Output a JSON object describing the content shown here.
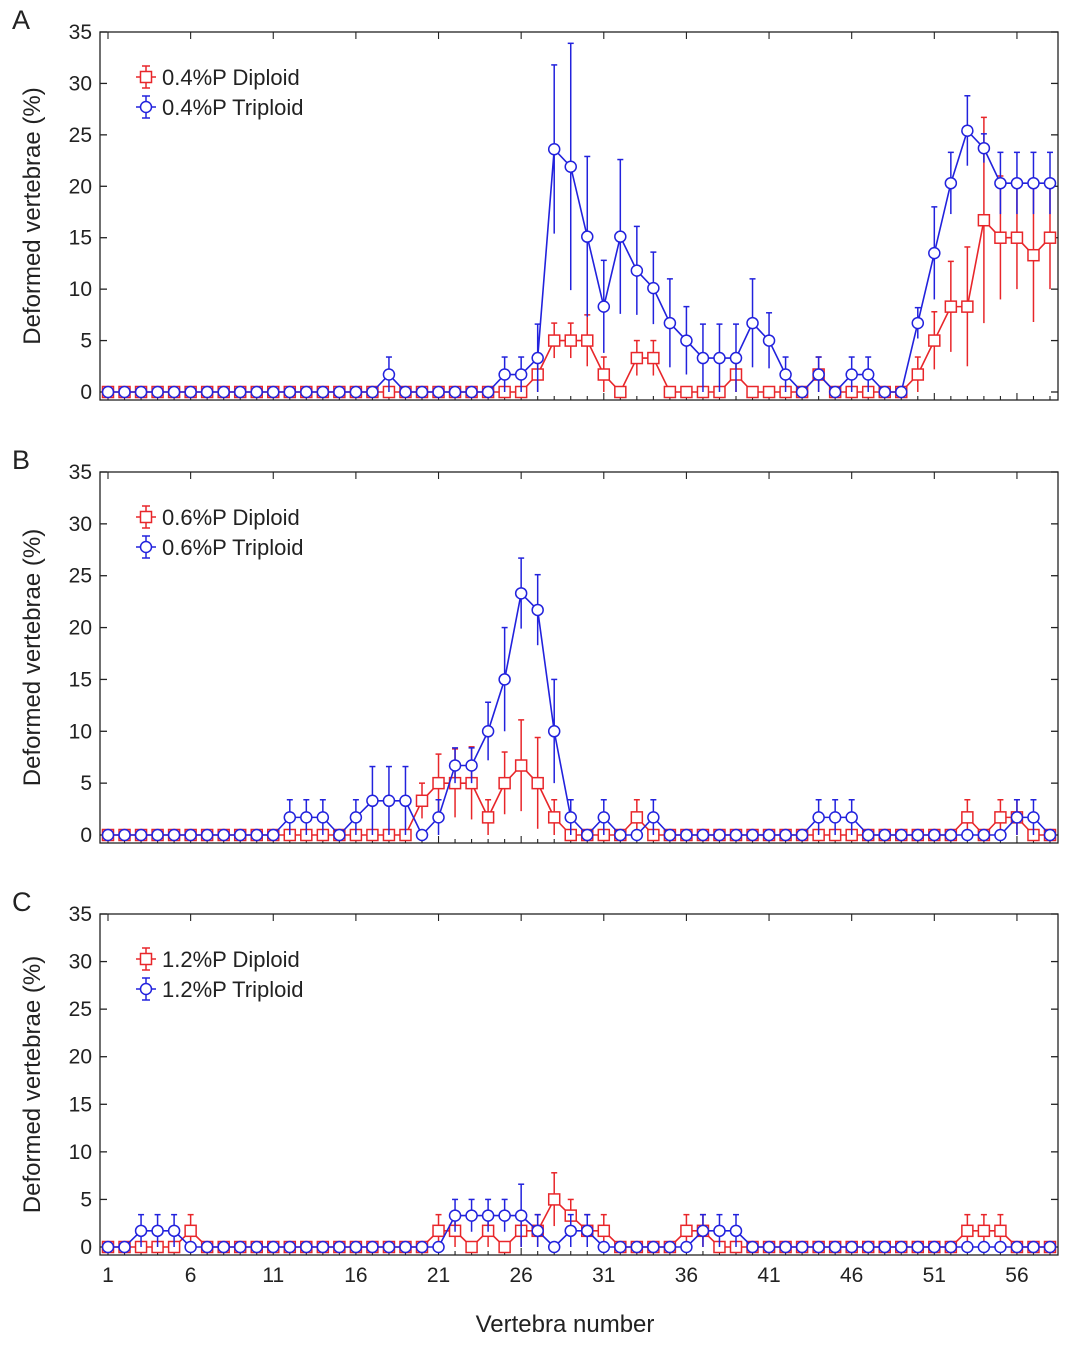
{
  "figure": {
    "xlabel": "Vertebra number",
    "ylabel": "Deformed vertebrae (%)"
  },
  "chart_data": [
    {
      "type": "line",
      "panel_label": "A",
      "title": "",
      "xlabel": "",
      "ylabel": "Deformed vertebrae (%)",
      "xlim": [
        1,
        58
      ],
      "ylim": [
        0,
        35
      ],
      "xticks": [
        1,
        6,
        11,
        16,
        21,
        26,
        31,
        36,
        41,
        46,
        51,
        56
      ],
      "yticks": [
        0,
        5,
        10,
        15,
        20,
        25,
        30,
        35
      ],
      "show_x_tick_labels": false,
      "grid": false,
      "legend_position": "top-left",
      "series": [
        {
          "name": "0.4%P Diploid",
          "color": "#e8262a",
          "marker": "square",
          "values": [
            0,
            0,
            0,
            0,
            0,
            0,
            0,
            0,
            0,
            0,
            0,
            0,
            0,
            0,
            0,
            0,
            0,
            0,
            0,
            0,
            0,
            0,
            0,
            0,
            0,
            0,
            1.7,
            5,
            5,
            5,
            1.7,
            0,
            3.3,
            3.3,
            0,
            0,
            0,
            0,
            1.7,
            0,
            0,
            0,
            0,
            1.7,
            0,
            0,
            0,
            0,
            0,
            1.7,
            5,
            8.3,
            8.3,
            16.7,
            15,
            15,
            13.3,
            15
          ],
          "errors": [
            0,
            0,
            0,
            0,
            0,
            0,
            0,
            0,
            0,
            0,
            0,
            0,
            0,
            0,
            0,
            0,
            0,
            0,
            0,
            0,
            0,
            0,
            0,
            0,
            0,
            0,
            1.7,
            1.7,
            1.7,
            2.5,
            1.7,
            0,
            1.7,
            1.7,
            0,
            0,
            0,
            0,
            1.7,
            0,
            0,
            0,
            0,
            1.7,
            0,
            0,
            0,
            0,
            0,
            1.7,
            2.8,
            4.4,
            5.8,
            10,
            6,
            5,
            6.5,
            5
          ]
        },
        {
          "name": "0.4%P Triploid",
          "color": "#2222dd",
          "marker": "circle",
          "values": [
            0,
            0,
            0,
            0,
            0,
            0,
            0,
            0,
            0,
            0,
            0,
            0,
            0,
            0,
            0,
            0,
            0,
            1.7,
            0,
            0,
            0,
            0,
            0,
            0,
            1.7,
            1.7,
            3.3,
            23.6,
            21.9,
            15.1,
            8.3,
            15.1,
            11.8,
            10.1,
            6.7,
            5,
            3.3,
            3.3,
            3.3,
            6.7,
            5,
            1.7,
            0,
            1.7,
            0,
            1.7,
            1.7,
            0,
            0,
            6.7,
            13.5,
            20.3,
            25.4,
            23.7,
            20.3,
            20.3,
            20.3,
            20.3
          ],
          "errors": [
            0,
            0,
            0,
            0,
            0,
            0,
            0,
            0,
            0,
            0,
            0,
            0,
            0,
            0,
            0,
            0,
            0,
            1.7,
            0,
            0,
            0,
            0,
            0,
            0,
            1.7,
            1.7,
            3.3,
            8.2,
            12,
            7.8,
            4.5,
            7.5,
            4.3,
            3.5,
            4.3,
            3.3,
            3.3,
            3.3,
            3.3,
            4.3,
            2.7,
            1.7,
            0,
            1.7,
            0,
            1.7,
            1.7,
            0,
            0,
            1.5,
            4.5,
            3,
            3.4,
            1.4,
            3,
            3,
            3,
            3
          ]
        }
      ]
    },
    {
      "type": "line",
      "panel_label": "B",
      "title": "",
      "xlabel": "",
      "ylabel": "Deformed vertebrae (%)",
      "xlim": [
        1,
        58
      ],
      "ylim": [
        0,
        35
      ],
      "xticks": [
        1,
        6,
        11,
        16,
        21,
        26,
        31,
        36,
        41,
        46,
        51,
        56
      ],
      "yticks": [
        0,
        5,
        10,
        15,
        20,
        25,
        30,
        35
      ],
      "show_x_tick_labels": false,
      "grid": false,
      "legend_position": "top-left",
      "series": [
        {
          "name": "0.6%P Diploid",
          "color": "#e8262a",
          "marker": "square",
          "values": [
            0,
            0,
            0,
            0,
            0,
            0,
            0,
            0,
            0,
            0,
            0,
            0,
            0,
            0,
            0,
            0,
            0,
            0,
            0,
            3.3,
            5,
            5,
            5,
            1.7,
            5,
            6.7,
            5,
            1.7,
            0,
            0,
            0,
            0,
            1.7,
            0,
            0,
            0,
            0,
            0,
            0,
            0,
            0,
            0,
            0,
            0,
            0,
            0,
            0,
            0,
            0,
            0,
            0,
            0,
            1.7,
            0,
            1.7,
            1.7,
            0,
            0
          ],
          "errors": [
            0,
            0,
            0,
            0,
            0,
            0,
            0,
            0,
            0,
            0,
            0,
            0,
            0,
            0,
            0,
            0,
            0,
            0,
            0,
            1.7,
            2.8,
            3.3,
            3.5,
            1.7,
            3,
            4.4,
            4.4,
            1.7,
            0,
            0,
            0,
            0,
            1.7,
            0,
            0,
            0,
            0,
            0,
            0,
            0,
            0,
            0,
            0,
            0,
            0,
            0,
            0,
            0,
            0,
            0,
            0,
            0,
            1.7,
            0,
            1.7,
            1.7,
            0,
            0
          ]
        },
        {
          "name": "0.6%P Triploid",
          "color": "#2222dd",
          "marker": "circle",
          "values": [
            0,
            0,
            0,
            0,
            0,
            0,
            0,
            0,
            0,
            0,
            0,
            1.7,
            1.7,
            1.7,
            0,
            1.7,
            3.3,
            3.3,
            3.3,
            0,
            1.7,
            6.7,
            6.7,
            10,
            15,
            23.3,
            21.7,
            10,
            1.7,
            0,
            1.7,
            0,
            0,
            1.7,
            0,
            0,
            0,
            0,
            0,
            0,
            0,
            0,
            0,
            1.7,
            1.7,
            1.7,
            0,
            0,
            0,
            0,
            0,
            0,
            0,
            0,
            0,
            1.7,
            1.7,
            0
          ],
          "errors": [
            0,
            0,
            0,
            0,
            0,
            0,
            0,
            0,
            0,
            0,
            0,
            1.7,
            1.7,
            1.7,
            0,
            1.7,
            3.3,
            3.3,
            3.3,
            0,
            1.7,
            1.7,
            1.7,
            2.8,
            5,
            3.4,
            3.4,
            5,
            1.7,
            0,
            1.7,
            0,
            0,
            1.7,
            0,
            0,
            0,
            0,
            0,
            0,
            0,
            0,
            0,
            1.7,
            1.7,
            1.7,
            0,
            0,
            0,
            0,
            0,
            0,
            0,
            0,
            0,
            1.7,
            1.7,
            0
          ]
        }
      ]
    },
    {
      "type": "line",
      "panel_label": "C",
      "title": "",
      "xlabel": "Vertebra number",
      "ylabel": "Deformed vertebrae (%)",
      "xlim": [
        1,
        58
      ],
      "ylim": [
        0,
        35
      ],
      "xticks": [
        1,
        6,
        11,
        16,
        21,
        26,
        31,
        36,
        41,
        46,
        51,
        56
      ],
      "yticks": [
        0,
        5,
        10,
        15,
        20,
        25,
        30,
        35
      ],
      "show_x_tick_labels": true,
      "grid": false,
      "legend_position": "top-left",
      "series": [
        {
          "name": "1.2%P Diploid",
          "color": "#e8262a",
          "marker": "square",
          "values": [
            0,
            0,
            0,
            0,
            0,
            1.7,
            0,
            0,
            0,
            0,
            0,
            0,
            0,
            0,
            0,
            0,
            0,
            0,
            0,
            0,
            1.7,
            1.7,
            0,
            1.7,
            0,
            1.7,
            1.7,
            5,
            3.3,
            1.7,
            1.7,
            0,
            0,
            0,
            0,
            1.7,
            1.7,
            0,
            0,
            0,
            0,
            0,
            0,
            0,
            0,
            0,
            0,
            0,
            0,
            0,
            0,
            0,
            1.7,
            1.7,
            1.7,
            0,
            0,
            0
          ],
          "errors": [
            0,
            0,
            0,
            0,
            0,
            1.7,
            0,
            0,
            0,
            0,
            0,
            0,
            0,
            0,
            0,
            0,
            0,
            0,
            0,
            0,
            1.7,
            1.7,
            0,
            1.7,
            0,
            1.7,
            1.7,
            2.8,
            1.7,
            1.7,
            1.7,
            0,
            0,
            0,
            0,
            1.7,
            1.7,
            0,
            0,
            0,
            0,
            0,
            0,
            0,
            0,
            0,
            0,
            0,
            0,
            0,
            0,
            0,
            1.7,
            1.7,
            1.7,
            0,
            0,
            0
          ]
        },
        {
          "name": "1.2%P Triploid",
          "color": "#2222dd",
          "marker": "circle",
          "values": [
            0,
            0,
            1.7,
            1.7,
            1.7,
            0,
            0,
            0,
            0,
            0,
            0,
            0,
            0,
            0,
            0,
            0,
            0,
            0,
            0,
            0,
            0,
            3.3,
            3.3,
            3.3,
            3.3,
            3.3,
            1.7,
            0,
            1.7,
            1.7,
            0,
            0,
            0,
            0,
            0,
            0,
            1.7,
            1.7,
            1.7,
            0,
            0,
            0,
            0,
            0,
            0,
            0,
            0,
            0,
            0,
            0,
            0,
            0,
            0,
            0,
            0,
            0,
            0,
            0
          ],
          "errors": [
            0,
            0,
            1.7,
            1.7,
            1.7,
            0,
            0,
            0,
            0,
            0,
            0,
            0,
            0,
            0,
            0,
            0,
            0,
            0,
            0,
            0,
            0,
            1.7,
            1.7,
            1.7,
            1.7,
            3.3,
            1.7,
            0,
            1.7,
            1.7,
            0,
            0,
            0,
            0,
            0,
            0,
            1.7,
            1.7,
            1.7,
            0,
            0,
            0,
            0,
            0,
            0,
            0,
            0,
            0,
            0,
            0,
            0,
            0,
            0,
            0,
            0,
            0,
            0,
            0
          ]
        }
      ]
    }
  ]
}
